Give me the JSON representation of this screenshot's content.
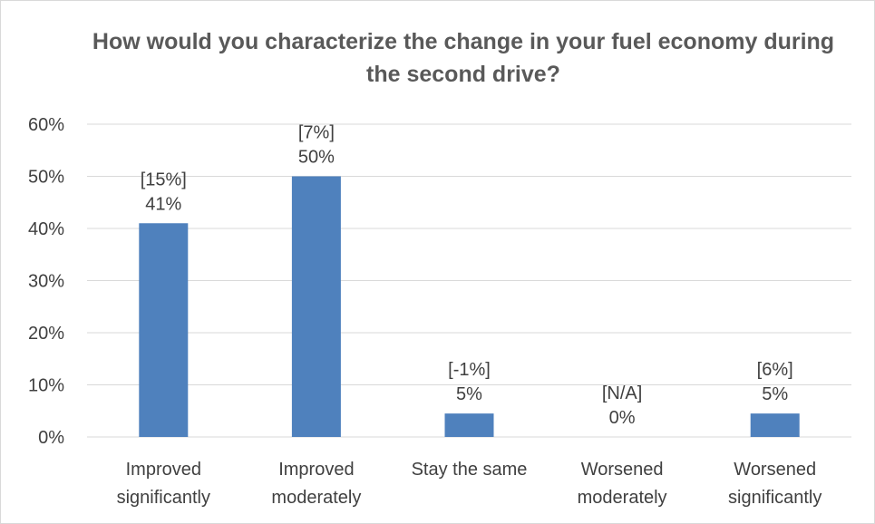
{
  "chart_data": {
    "type": "bar",
    "title": "How would you characterize the change in your fuel economy during the second drive?",
    "xlabel": "",
    "ylabel": "",
    "ylim": [
      0,
      0.6
    ],
    "yticks": [
      "0%",
      "10%",
      "20%",
      "30%",
      "40%",
      "50%",
      "60%"
    ],
    "grid": true,
    "legend": "none",
    "bar_color": "#4f81bd",
    "grid_color": "#d9d9d9",
    "categories": [
      [
        "Improved",
        "significantly"
      ],
      [
        "Improved",
        "moderately"
      ],
      [
        "Stay the same"
      ],
      [
        "Worsened",
        "moderately"
      ],
      [
        "Worsened",
        "significantly"
      ]
    ],
    "values": [
      0.41,
      0.5,
      0.045,
      0.0,
      0.045
    ],
    "value_labels": [
      "41%",
      "50%",
      "5%",
      "0%",
      "5%"
    ],
    "change_labels": [
      "[15%]",
      "[7%]",
      "[-1%]",
      "[N/A]",
      "[6%]"
    ]
  }
}
